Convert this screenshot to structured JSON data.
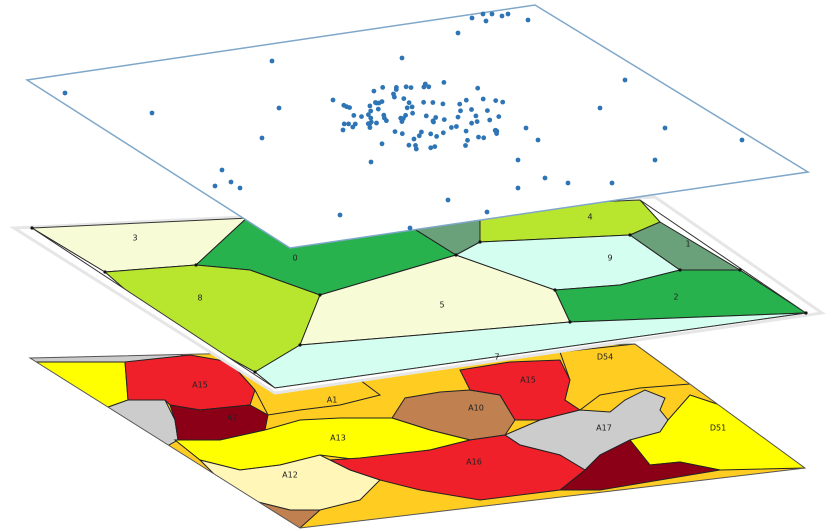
{
  "colors": {
    "background": "#ffffff",
    "points": "#2e75b6",
    "point_plane_border": "#7fa7c9",
    "voronoi_edges": "#222222",
    "map_edges": "#222222"
  },
  "layers": {
    "points": {
      "name": "point-layer"
    },
    "voronoi": {
      "name": "voronoi-layer",
      "labels": [
        "3",
        "0",
        "8",
        "5",
        "4",
        "9",
        "1",
        "2",
        "7"
      ]
    },
    "regions": {
      "name": "region-map-layer",
      "labels": [
        "A1",
        "A10",
        "A15",
        "D54",
        "D51",
        "A17",
        "A13",
        "A12",
        "A16",
        "A7"
      ],
      "fill_colors": {
        "yellow": "#ffff00",
        "red": "#f0202a",
        "dark_red": "#8b0016",
        "gray": "#cccccc",
        "orange": "#ffcc22",
        "brown": "#c08050",
        "cream": "#fff6b8"
      }
    }
  },
  "voronoi_colors": {
    "pale_yellow": "#f7fbd6",
    "green": "#27b24e",
    "lime": "#b8e62e",
    "mint": "#d4fff0",
    "gray_green": "#6aa07a"
  }
}
